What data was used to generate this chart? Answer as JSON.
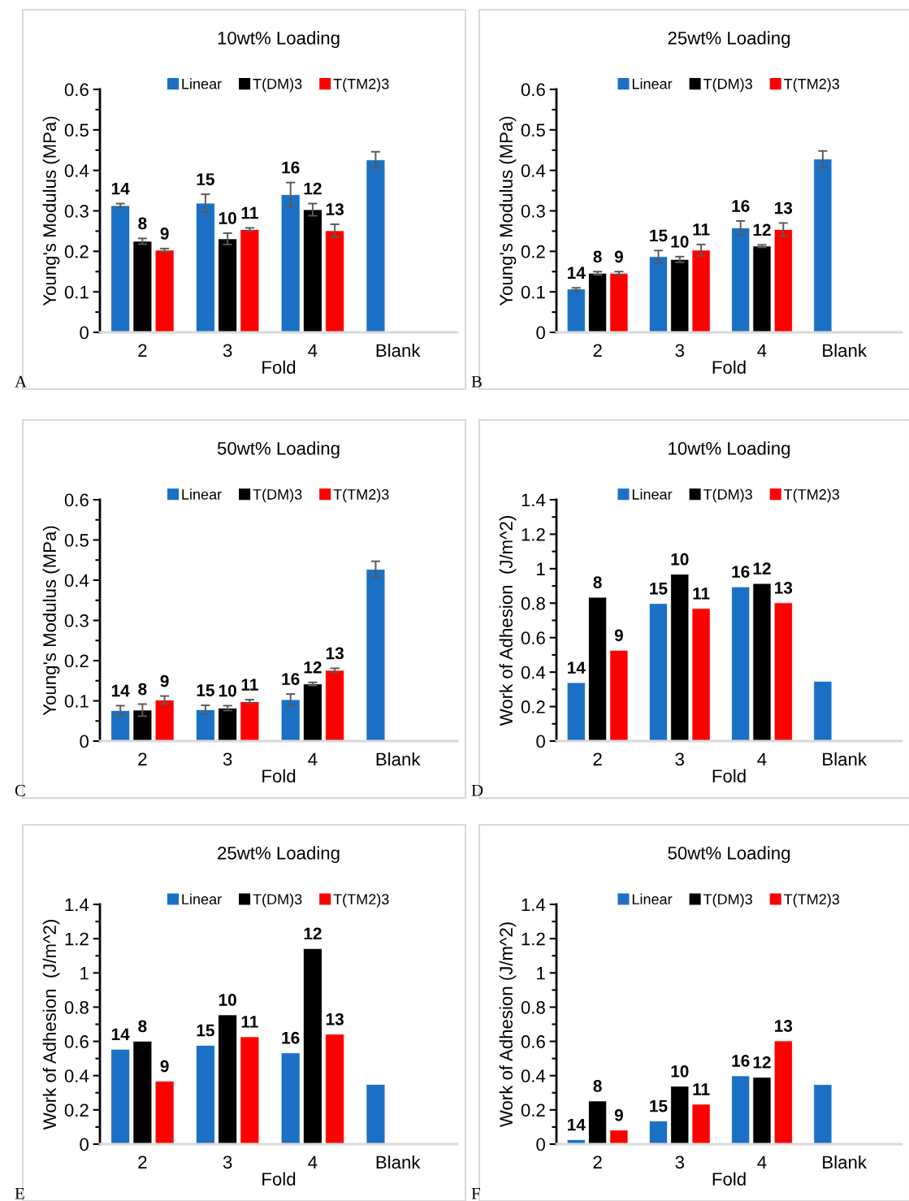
{
  "chart_data": [
    {
      "type": "bar",
      "title": "10wt% Loading",
      "xlabel": "Fold",
      "ylabel": "Young's Modulus (MPa)",
      "categories": [
        "2",
        "3",
        "4",
        "Blank"
      ],
      "ylim": [
        0,
        0.6
      ],
      "yticks": [
        0,
        0.1,
        0.2,
        0.3,
        0.4,
        0.5,
        0.6
      ],
      "legend": "top",
      "annotations": [
        "A",
        "14",
        "8",
        "9",
        "15",
        "10",
        "11",
        "16",
        "12",
        "13"
      ],
      "series": [
        {
          "name": "Linear",
          "color": "#1a70c5",
          "values": [
            0.313,
            0.319,
            0.34,
            0.426
          ],
          "errors": [
            0.005,
            0.022,
            0.03,
            0.02
          ]
        },
        {
          "name": "T(DM)3",
          "color": "#000000",
          "values": [
            0.225,
            0.231,
            0.303,
            null
          ],
          "errors": [
            0.007,
            0.014,
            0.015,
            null
          ]
        },
        {
          "name": "T(TM2)3",
          "color": "#ff0000",
          "values": [
            0.203,
            0.254,
            0.251,
            null
          ],
          "errors": [
            0.004,
            0.004,
            0.016,
            null
          ]
        }
      ]
    },
    {
      "type": "bar",
      "title": "25wt% Loading",
      "xlabel": "Fold",
      "ylabel": "Young's Modulus (MPa)",
      "categories": [
        "2",
        "3",
        "4",
        "Blank"
      ],
      "ylim": [
        0,
        0.6
      ],
      "yticks": [
        0,
        0.1,
        0.2,
        0.3,
        0.4,
        0.5,
        0.6
      ],
      "legend": "top",
      "annotations": [
        "B",
        "14",
        "8",
        "9",
        "15",
        "10",
        "11",
        "16",
        "12",
        "13"
      ],
      "series": [
        {
          "name": "Linear",
          "color": "#1a70c5",
          "values": [
            0.107,
            0.187,
            0.258,
            0.428
          ],
          "errors": [
            0.003,
            0.015,
            0.017,
            0.02
          ]
        },
        {
          "name": "T(DM)3",
          "color": "#000000",
          "values": [
            0.146,
            0.18,
            0.213,
            null
          ],
          "errors": [
            0.004,
            0.007,
            0.003,
            null
          ]
        },
        {
          "name": "T(TM2)3",
          "color": "#ff0000",
          "values": [
            0.146,
            0.203,
            0.254,
            null
          ],
          "errors": [
            0.004,
            0.014,
            0.016,
            null
          ]
        }
      ]
    },
    {
      "type": "bar",
      "title": "50wt% Loading",
      "xlabel": "Fold",
      "ylabel": "Young's Modulus (MPa)",
      "categories": [
        "2",
        "3",
        "4",
        "Blank"
      ],
      "ylim": [
        0,
        0.6
      ],
      "yticks": [
        0,
        0.1,
        0.2,
        0.3,
        0.4,
        0.5,
        0.6
      ],
      "legend": "top",
      "annotations": [
        "C",
        "14",
        "8",
        "9",
        "15",
        "10",
        "11",
        "16",
        "12",
        "13"
      ],
      "series": [
        {
          "name": "Linear",
          "color": "#1a70c5",
          "values": [
            0.076,
            0.078,
            0.103,
            0.427
          ],
          "errors": [
            0.012,
            0.011,
            0.014,
            0.02
          ]
        },
        {
          "name": "T(DM)3",
          "color": "#000000",
          "values": [
            0.077,
            0.082,
            0.142,
            null
          ],
          "errors": [
            0.015,
            0.006,
            0.004,
            null
          ]
        },
        {
          "name": "T(TM2)3",
          "color": "#ff0000",
          "values": [
            0.102,
            0.098,
            0.176,
            null
          ],
          "errors": [
            0.01,
            0.005,
            0.005,
            null
          ]
        }
      ]
    },
    {
      "type": "bar",
      "title": "10wt% Loading",
      "xlabel": "Fold",
      "ylabel": "Work of Adhesion  (J/m^2)",
      "categories": [
        "2",
        "3",
        "4",
        "Blank"
      ],
      "ylim": [
        0,
        1.4
      ],
      "yticks": [
        0,
        0.2,
        0.4,
        0.6,
        0.8,
        1,
        1.2,
        1.4
      ],
      "legend": "top",
      "annotations": [
        "D",
        "14",
        "8",
        "9",
        "15",
        "10",
        "11",
        "16",
        "12",
        "13"
      ],
      "series": [
        {
          "name": "Linear",
          "color": "#1a70c5",
          "values": [
            0.339,
            0.798,
            0.895,
            0.347
          ]
        },
        {
          "name": "T(DM)3",
          "color": "#000000",
          "values": [
            0.834,
            0.968,
            0.914,
            null
          ]
        },
        {
          "name": "T(TM2)3",
          "color": "#ff0000",
          "values": [
            0.527,
            0.769,
            0.802,
            null
          ]
        }
      ]
    },
    {
      "type": "bar",
      "title": "25wt% Loading",
      "xlabel": "Fold",
      "ylabel": "Work of Adhesion  (J/m^2)",
      "categories": [
        "2",
        "3",
        "4",
        "Blank"
      ],
      "ylim": [
        0,
        1.4
      ],
      "yticks": [
        0,
        0.2,
        0.4,
        0.6,
        0.8,
        1,
        1.2,
        1.4
      ],
      "legend": "top",
      "annotations": [
        "E",
        "14",
        "8",
        "9",
        "15",
        "10",
        "11",
        "16",
        "12",
        "13"
      ],
      "series": [
        {
          "name": "Linear",
          "color": "#1a70c5",
          "values": [
            0.554,
            0.577,
            0.533,
            0.349
          ]
        },
        {
          "name": "T(DM)3",
          "color": "#000000",
          "values": [
            0.601,
            0.755,
            1.142,
            null
          ]
        },
        {
          "name": "T(TM2)3",
          "color": "#ff0000",
          "values": [
            0.368,
            0.627,
            0.642,
            null
          ]
        }
      ]
    },
    {
      "type": "bar",
      "title": "50wt% Loading",
      "xlabel": "Fold",
      "ylabel": "Work of Adhesion (J/m^2)",
      "categories": [
        "2",
        "3",
        "4",
        "Blank"
      ],
      "ylim": [
        0,
        1.4
      ],
      "yticks": [
        0,
        0.2,
        0.4,
        0.6,
        0.8,
        1,
        1.2,
        1.4
      ],
      "legend": "top",
      "annotations": [
        "F",
        "14",
        "8",
        "9",
        "15",
        "10",
        "11",
        "16",
        "12",
        "13"
      ],
      "series": [
        {
          "name": "Linear",
          "color": "#1a70c5",
          "values": [
            0.026,
            0.135,
            0.399,
            0.348
          ]
        },
        {
          "name": "T(DM)3",
          "color": "#000000",
          "values": [
            0.252,
            0.338,
            0.39,
            null
          ]
        },
        {
          "name": "T(TM2)3",
          "color": "#ff0000",
          "values": [
            0.082,
            0.233,
            0.603,
            null
          ]
        }
      ]
    }
  ]
}
